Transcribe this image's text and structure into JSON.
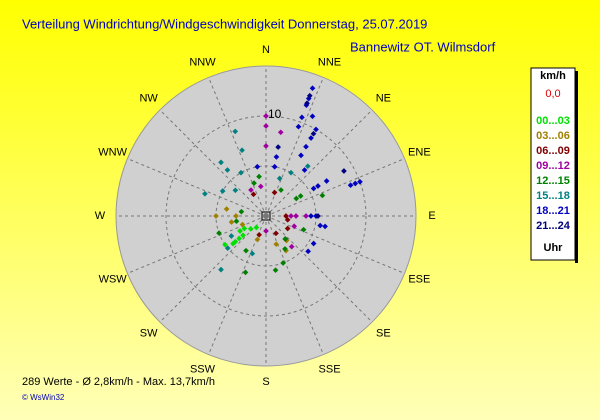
{
  "chart_data": {
    "type": "polar-scatter",
    "title": "Verteilung Windrichtung/Windgeschwindigkeit  Donnerstag, 25.07.2019",
    "subtitle": "Bannewitz OT. Wilmsdorf",
    "directions": [
      "N",
      "NNE",
      "NE",
      "ENE",
      "E",
      "ESE",
      "SE",
      "SSE",
      "S",
      "SSW",
      "SW",
      "WSW",
      "W",
      "WNW",
      "NW",
      "NNW"
    ],
    "rlim": [
      0,
      15
    ],
    "rgrid": [
      5,
      10
    ],
    "rticks": [
      10
    ],
    "legend_title": "km/h",
    "legend_footer": "Uhr",
    "calm": {
      "name": "0,0",
      "color": "#e00000"
    },
    "series": [
      {
        "name": "00...03",
        "color": "#00e000",
        "directions": [
          230,
          230,
          230,
          230,
          230,
          235,
          220,
          240,
          240
        ],
        "speeds": [
          2,
          3,
          3.5,
          4,
          4.3,
          5,
          1.5,
          3,
          2.5
        ]
      },
      {
        "name": "03...06",
        "color": "#a08000",
        "directions": [
          270,
          260,
          250,
          280,
          270,
          160,
          150,
          200,
          140
        ],
        "speeds": [
          3,
          3.5,
          2.5,
          4,
          5,
          3,
          4,
          2.5,
          3.2
        ]
      },
      {
        "name": "06...09",
        "color": "#800000",
        "directions": [
          90,
          100,
          120,
          140,
          150,
          200,
          20,
          330
        ],
        "speeds": [
          2,
          2.2,
          2.5,
          3,
          2,
          2,
          2.5,
          2.5
        ]
      },
      {
        "name": "09...12",
        "color": "#a000a0",
        "directions": [
          0,
          0,
          0,
          10,
          350,
          90,
          90,
          90,
          110,
          180,
          330,
          140
        ],
        "speeds": [
          7,
          9,
          10,
          8.5,
          3,
          4,
          3,
          2.5,
          3,
          1.5,
          3,
          4
        ]
      },
      {
        "name": "12...15",
        "color": "#008000",
        "directions": [
          350,
          340,
          30,
          60,
          70,
          110,
          140,
          150,
          160,
          170,
          200,
          210,
          250,
          260,
          280,
          60
        ],
        "speeds": [
          4,
          3.5,
          3,
          4,
          6,
          4,
          3,
          3.8,
          5,
          5.5,
          6,
          4,
          5,
          3,
          2.5,
          3.5
        ]
      },
      {
        "name": "15...18",
        "color": "#008080",
        "directions": [
          320,
          320,
          310,
          300,
          290,
          340,
          330,
          340,
          20,
          30,
          40,
          220,
          230,
          240,
          200
        ],
        "speeds": [
          7,
          6,
          4,
          5,
          6.5,
          7,
          5,
          9,
          4,
          5,
          6.5,
          7,
          5,
          4,
          4
        ]
      },
      {
        "name": "18...21",
        "color": "#0000c0",
        "directions": [
          20,
          20,
          20,
          20,
          20,
          30,
          30,
          30,
          40,
          60,
          60,
          70,
          70,
          70,
          60,
          90,
          90,
          100,
          100,
          120,
          130,
          10,
          10,
          350,
          30,
          25
        ],
        "speeds": [
          13.6,
          12.5,
          11.8,
          10.5,
          9.5,
          9,
          8,
          7,
          6,
          5.5,
          6,
          9.5,
          10,
          9,
          7,
          5,
          4.5,
          6,
          5.5,
          5.5,
          5.5,
          6,
          5,
          5,
          10,
          11
        ]
      },
      {
        "name": "21...24",
        "color": "#000080",
        "directions": [
          20,
          20,
          30,
          60,
          10,
          90
        ],
        "speeds": [
          12,
          12.8,
          9.5,
          9,
          7,
          5.2
        ]
      }
    ],
    "summary": "289 Werte   -   Ø 2,8km/h   -   Max. 13,7km/h",
    "credit": "© WsWin32"
  }
}
